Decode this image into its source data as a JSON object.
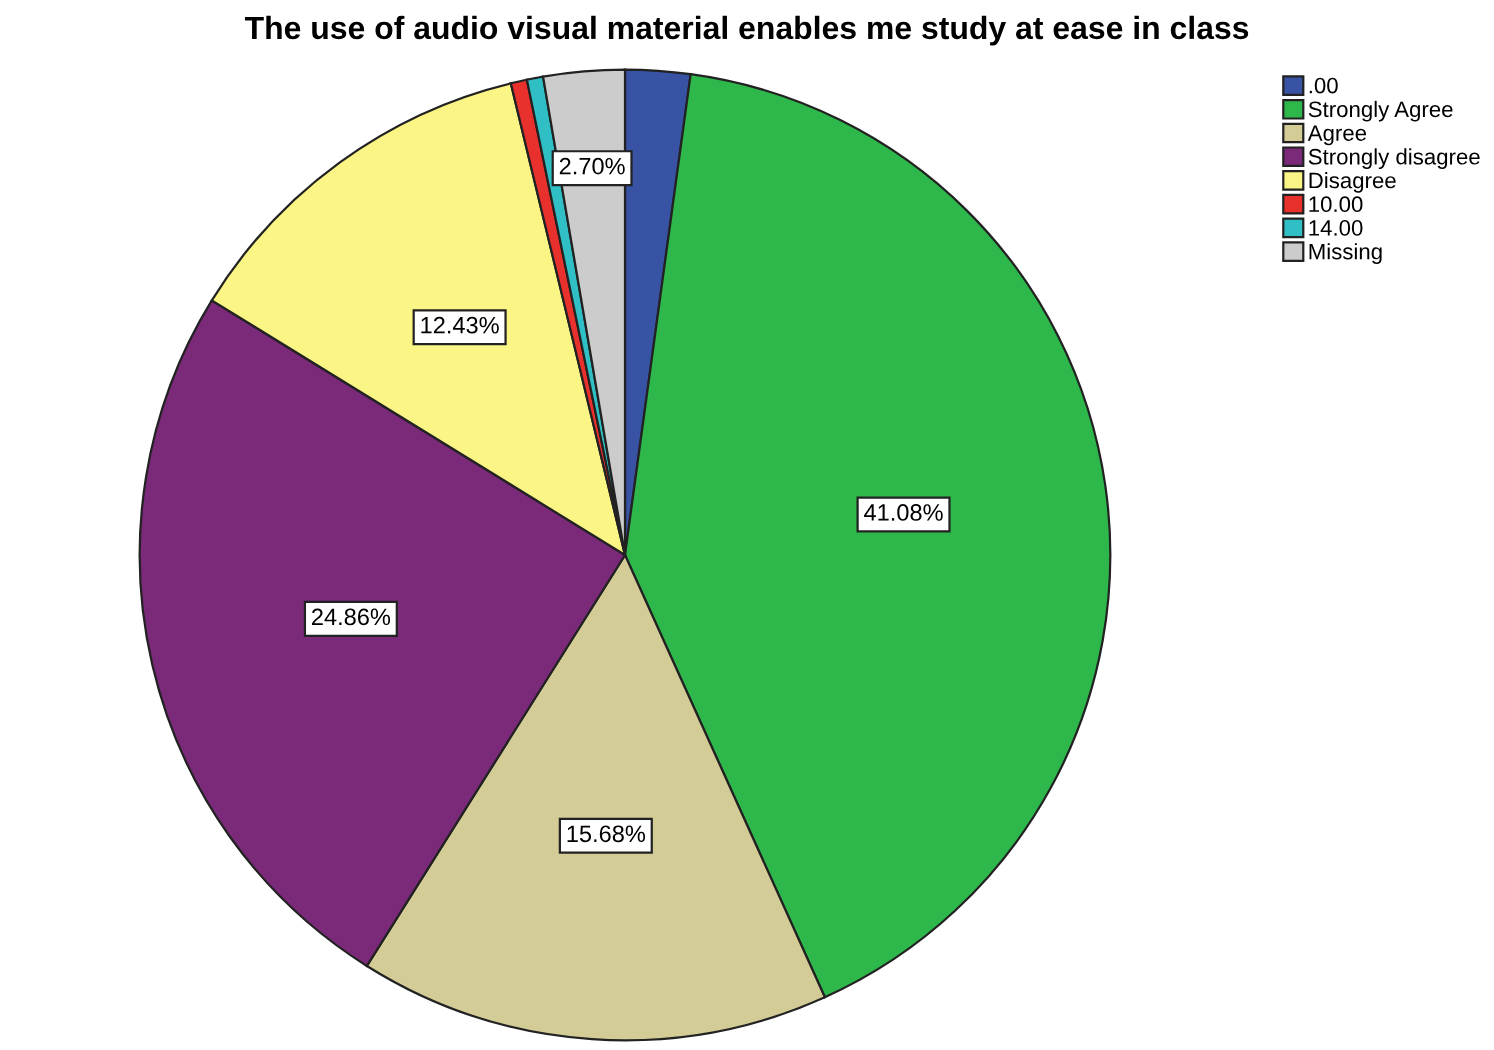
{
  "chart_data": {
    "type": "pie",
    "title": "The use of audio visual material enables me study at ease in class",
    "categories": [
      ".00",
      "Strongly Agree",
      "Agree",
      "Strongly disagree",
      "Disagree",
      "10.00",
      "14.00",
      "Missing"
    ],
    "values": [
      2.16,
      41.08,
      15.68,
      24.86,
      12.43,
      0.54,
      0.54,
      2.7
    ],
    "colors": [
      "#3953a4",
      "#2eb84b",
      "#d3cc96",
      "#7b2a7a",
      "#fbf585",
      "#e8302c",
      "#2fbfc4",
      "#cccccc"
    ],
    "value_labels": [
      null,
      "41.08%",
      "15.68%",
      "24.86%",
      "12.43%",
      null,
      null,
      "2.70%"
    ],
    "legend": "top right"
  }
}
